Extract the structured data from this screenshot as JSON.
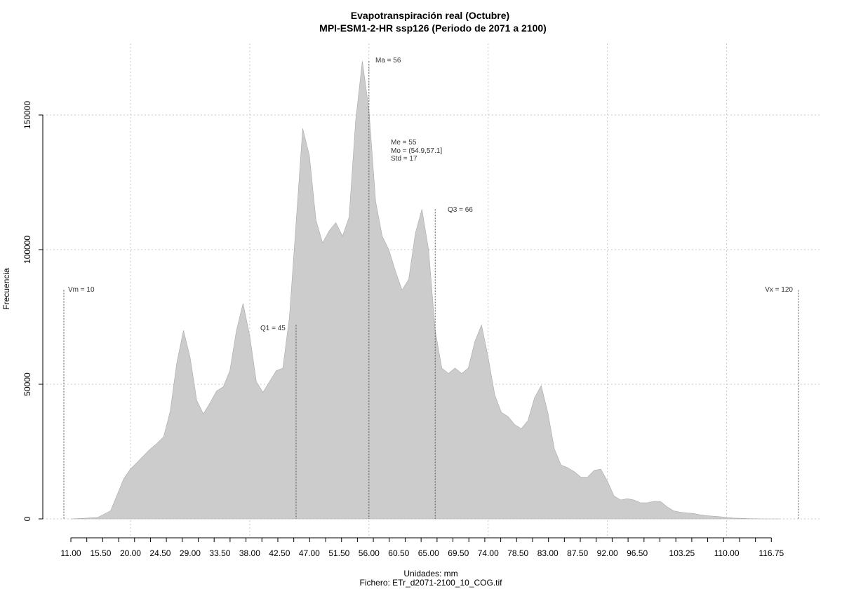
{
  "chart_data": {
    "type": "area",
    "title": "Evapotranspiración real (Octubre)",
    "subtitle": "MPI-ESM1-2-HR ssp126 (Periodo de 2071 a 2100)",
    "xlabel": "Unidades: mm",
    "ylabel": "Frecuencia",
    "footer": "Fichero: ETr_d2071-2100_10_COG.tif",
    "xlim": [
      11.0,
      120
    ],
    "ylim": [
      0,
      170000
    ],
    "grid": true,
    "fill_color": "#cccccc",
    "x_tick_labels": [
      "11.00",
      "15.50",
      "20.00",
      "24.50",
      "29.00",
      "33.50",
      "38.00",
      "42.50",
      "47.00",
      "51.50",
      "56.00",
      "60.50",
      "65.00",
      "69.50",
      "74.00",
      "78.50",
      "83.00",
      "87.50",
      "92.00",
      "96.50",
      "103.25",
      "110.00",
      "116.75"
    ],
    "x_tick_values": [
      11.0,
      15.5,
      20.0,
      24.5,
      29.0,
      33.5,
      38.0,
      42.5,
      47.0,
      51.5,
      56.0,
      60.5,
      65.0,
      69.5,
      74.0,
      78.5,
      83.0,
      87.5,
      92.0,
      96.5,
      103.25,
      110.0,
      116.75
    ],
    "y_ticks": [
      0,
      50000,
      100000,
      150000
    ],
    "y_tick_labels": [
      "0",
      "50000",
      "100000",
      "150000"
    ],
    "x": [
      11,
      13,
      15,
      17,
      18,
      19,
      20,
      21,
      22,
      23,
      24,
      25,
      26,
      27,
      28,
      29,
      30,
      31,
      32,
      33,
      34,
      35,
      36,
      37,
      38,
      39,
      40,
      41,
      42,
      43,
      44,
      45,
      46,
      47,
      48,
      49,
      50,
      51,
      52,
      53,
      54,
      55,
      56,
      57,
      58,
      59,
      60,
      61,
      62,
      63,
      64,
      65,
      66,
      67,
      68,
      69,
      70,
      71,
      72,
      73,
      74,
      75,
      76,
      77,
      78,
      79,
      80,
      81,
      82,
      83,
      84,
      85,
      86,
      87,
      88,
      89,
      90,
      91,
      92,
      93,
      94,
      95,
      96,
      97,
      98,
      99,
      100,
      101,
      102,
      103,
      104,
      105,
      106,
      107,
      108,
      109,
      110,
      111,
      112,
      113,
      114,
      115,
      116,
      117,
      118
    ],
    "values": [
      0,
      200,
      500,
      3000,
      9000,
      15000,
      18500,
      21000,
      23500,
      26000,
      28000,
      30500,
      40000,
      58000,
      70000,
      60000,
      44000,
      39000,
      43000,
      47500,
      49000,
      55000,
      70000,
      80000,
      68000,
      51000,
      47000,
      51000,
      55000,
      56000,
      75000,
      110000,
      145000,
      135000,
      111000,
      102500,
      107000,
      110000,
      105000,
      112000,
      148000,
      170000,
      152000,
      118000,
      105000,
      100000,
      92000,
      85000,
      89000,
      106000,
      115000,
      100000,
      70000,
      56000,
      54000,
      56000,
      54000,
      56000,
      66000,
      72000,
      60000,
      46000,
      39500,
      38000,
      35000,
      33500,
      36500,
      45000,
      49500,
      39500,
      26000,
      20000,
      19000,
      17500,
      15500,
      15500,
      18000,
      18500,
      14000,
      8500,
      7000,
      7500,
      7000,
      6000,
      6000,
      6500,
      6500,
      4500,
      3000,
      2500,
      2200,
      2000,
      1500,
      1200,
      1000,
      800,
      500,
      300,
      200,
      100,
      50,
      20,
      10,
      0,
      0
    ],
    "annotations": {
      "ma": "Ma = 56",
      "me": "Me = 55",
      "mo": "Mo = (54.9,57.1]",
      "std": "Std = 17",
      "q1": "Q1 = 45",
      "q3": "Q3 = 66",
      "vm": "Vm = 10",
      "vx": "Vx = 120"
    },
    "vertical_lines": [
      {
        "name": "vm",
        "x": 10.0,
        "top": 85000
      },
      {
        "name": "q1",
        "x": 45.0,
        "top": 72000
      },
      {
        "name": "ma",
        "x": 56.0,
        "top": 170000
      },
      {
        "name": "q3",
        "x": 66.0,
        "top": 115000
      },
      {
        "name": "vx",
        "x": 120.0,
        "top": 85000
      }
    ]
  }
}
